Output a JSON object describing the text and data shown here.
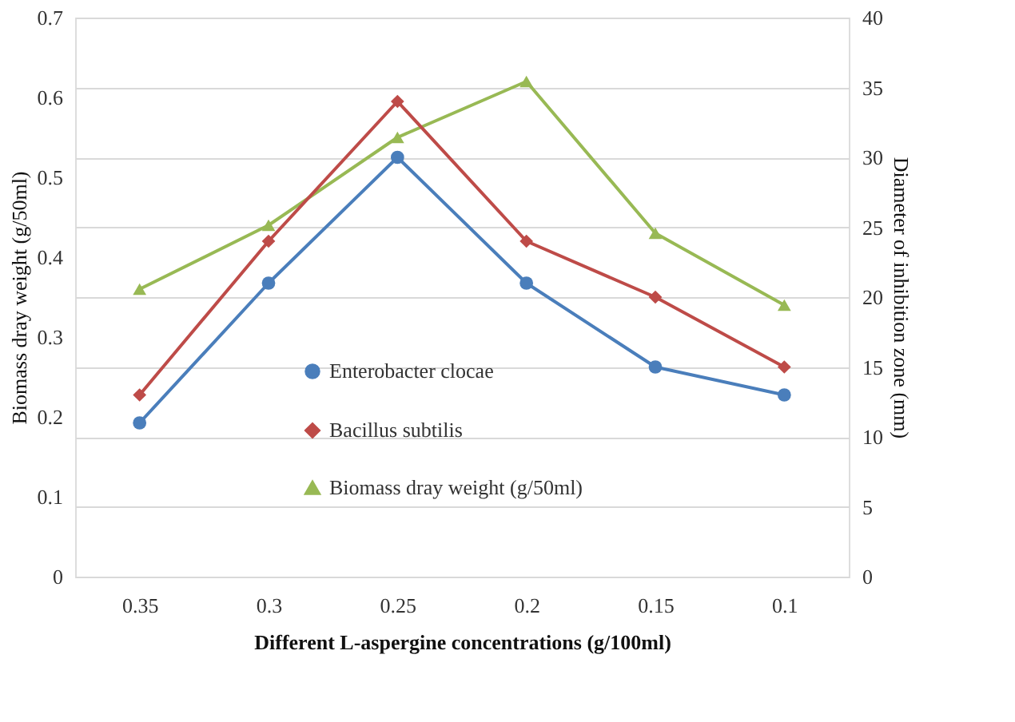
{
  "chart_data": {
    "type": "line",
    "xlabel": "Different  L-aspergine concentrations  (g/100ml)",
    "ylabel": "Biomass dray weight (g/50ml)",
    "y2label": "Diameter of inhibition zone (mm)",
    "categories": [
      "0.35",
      "0.3",
      "0.25",
      "0.2",
      "0.15",
      "0.1"
    ],
    "series": [
      {
        "name": "Enterobacter clocae",
        "color": "#4a7ebb",
        "marker": "circle",
        "axis": "y2",
        "values": [
          11,
          21,
          30,
          21,
          15,
          13
        ]
      },
      {
        "name": "Bacillus subtilis",
        "color": "#be4b48",
        "marker": "diamond",
        "axis": "y2",
        "values": [
          13,
          24,
          34,
          24,
          20,
          15
        ]
      },
      {
        "name": "Biomass dray weight (g/50ml)",
        "color": "#98b954",
        "marker": "triangle",
        "axis": "y",
        "values": [
          0.36,
          0.44,
          0.55,
          0.62,
          0.43,
          0.34
        ]
      }
    ],
    "ylim": [
      0,
      0.7
    ],
    "yticks": [
      0,
      0.1,
      0.2,
      0.3,
      0.4,
      0.5,
      0.6,
      0.7
    ],
    "y2lim": [
      0,
      40
    ],
    "y2ticks": [
      0,
      5,
      10,
      15,
      20,
      25,
      30,
      35,
      40
    ],
    "grid": "y2",
    "legend": "bottom",
    "line_style": "solid"
  }
}
